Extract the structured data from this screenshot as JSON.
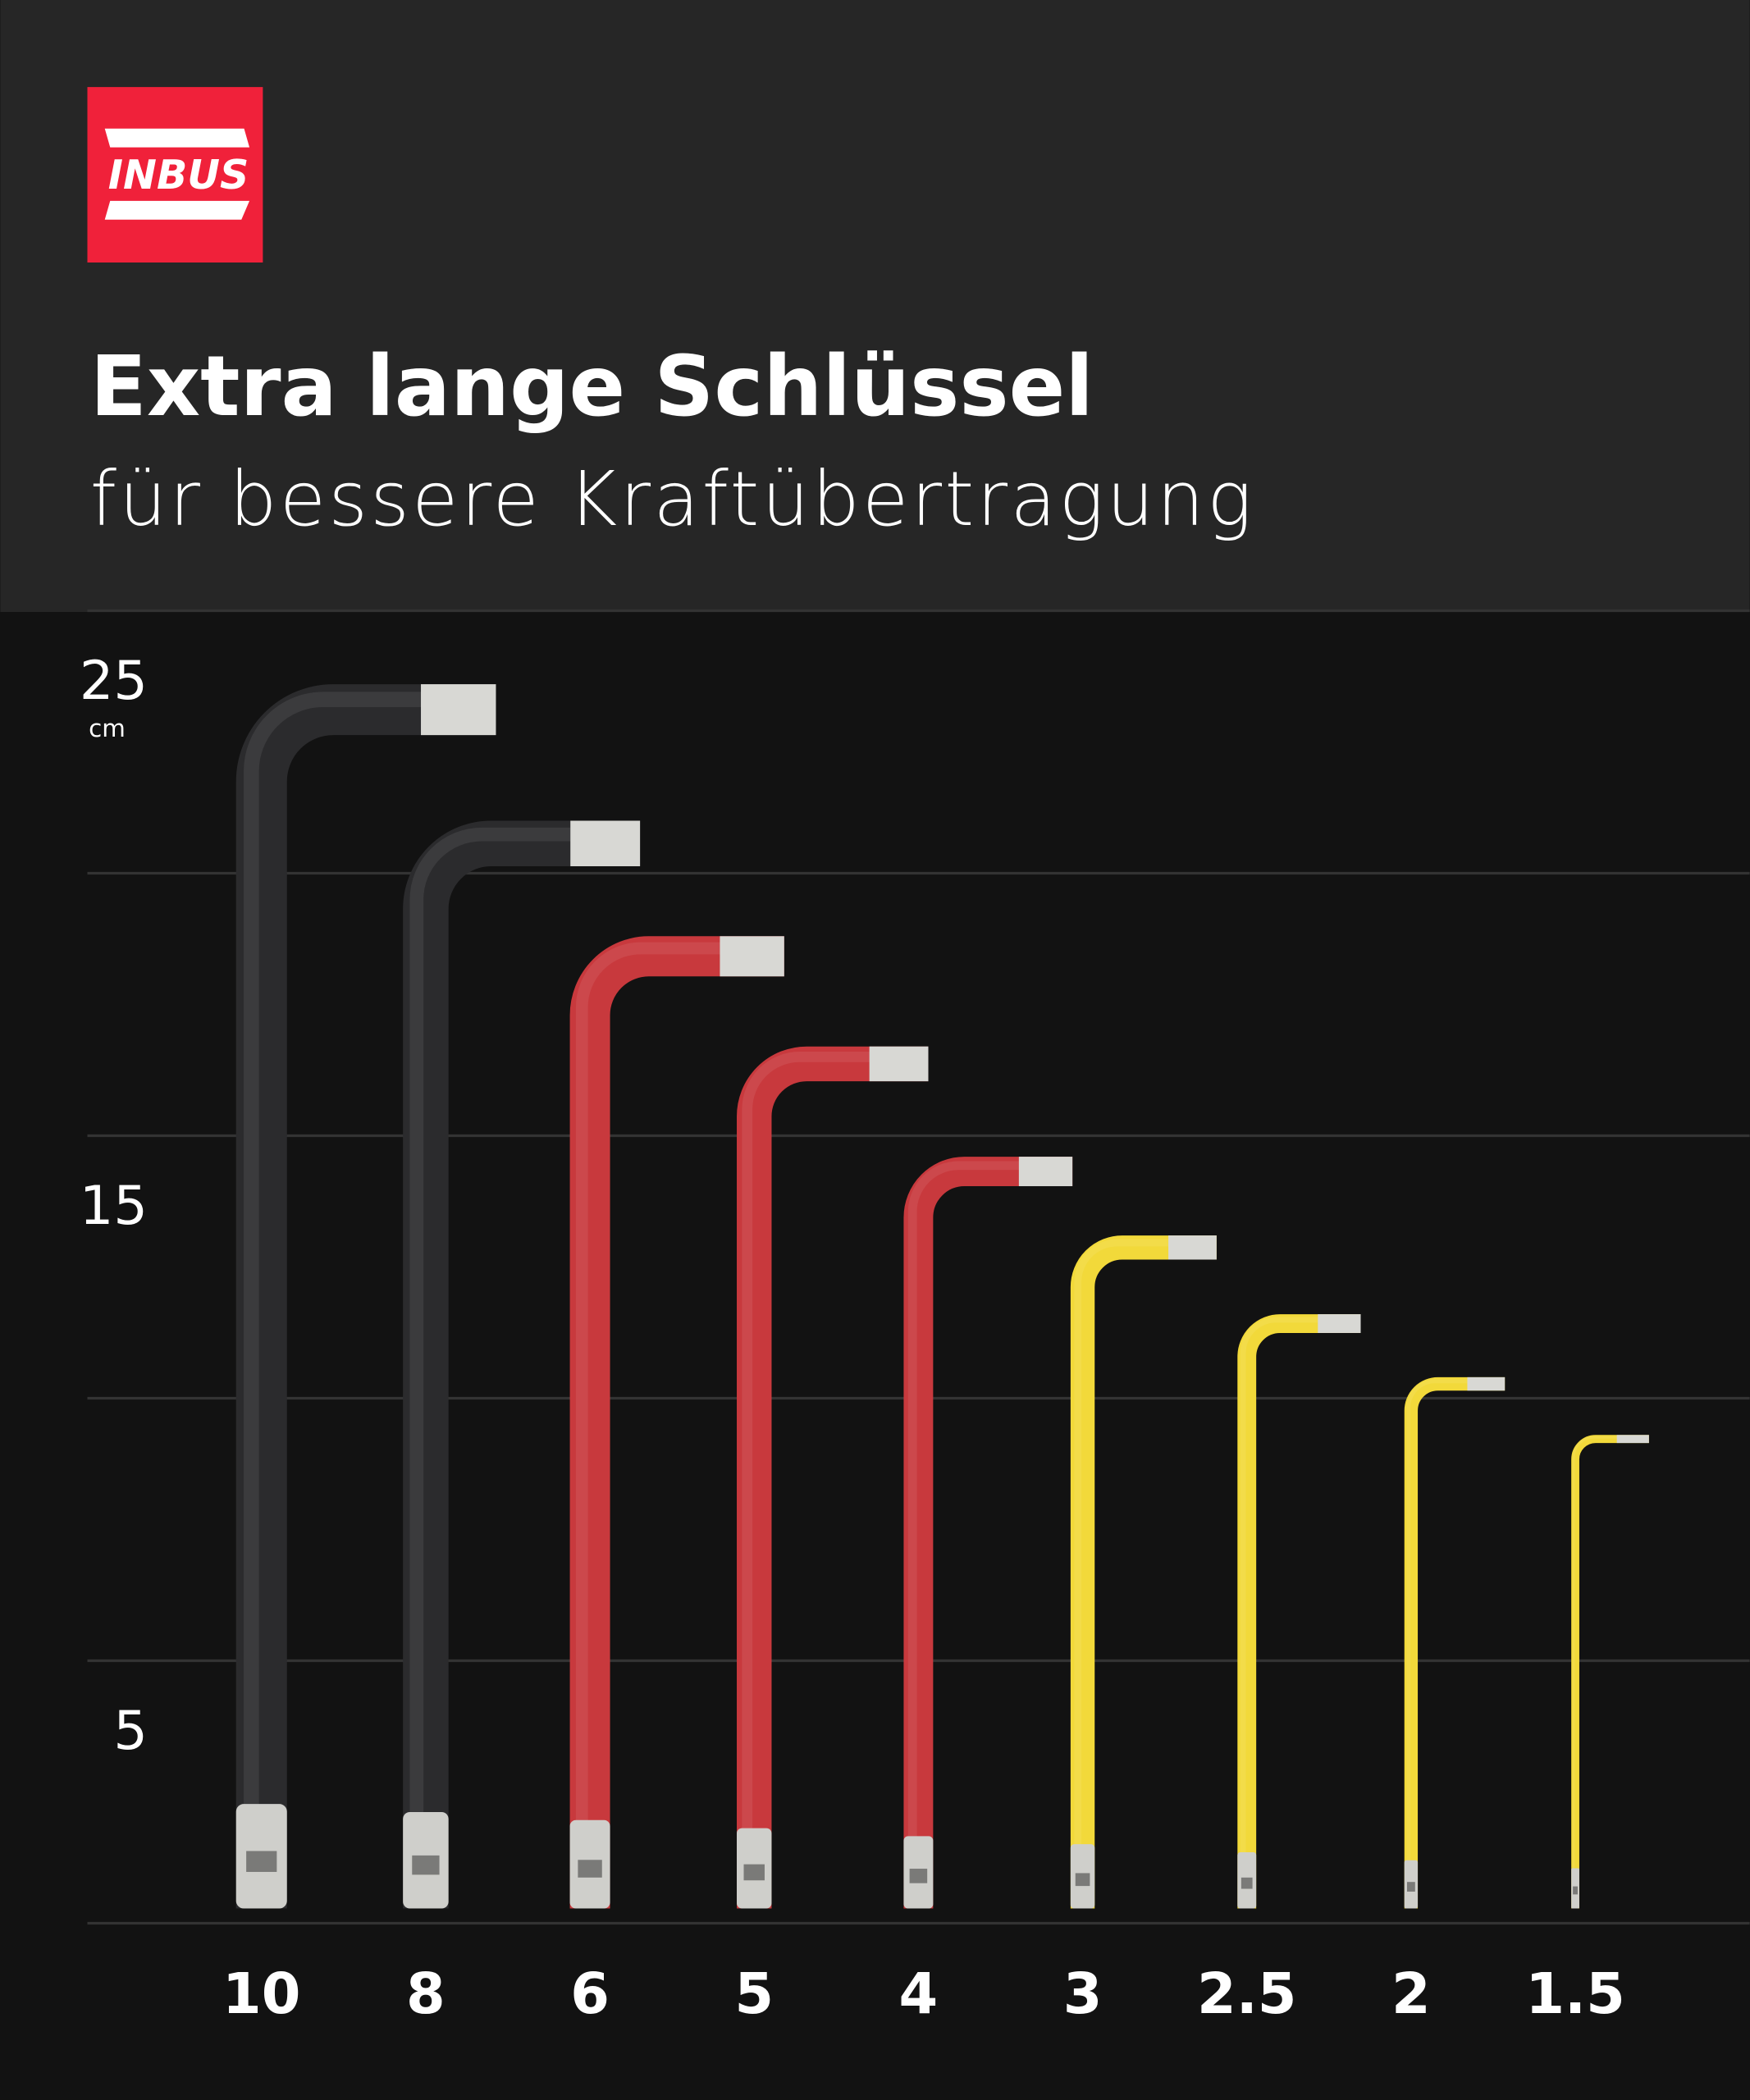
{
  "logo": "INBUS",
  "chart_data": {
    "type": "key",
    "title": "Extra lange Schlüssel",
    "subtitle": "für bessere Kraftübertragung",
    "ylabel": "cm",
    "categories": [
      "10",
      "8",
      "6",
      "5",
      "4",
      "3",
      "2.5",
      "2",
      "1.5"
    ],
    "values": [
      23.6,
      21.0,
      18.8,
      16.7,
      14.6,
      13.1,
      11.6,
      10.4,
      9.3
    ],
    "colors": [
      "#2b2b2d",
      "#2b2b2d",
      "#c8393d",
      "#c8393d",
      "#c8393d",
      "#f2d93a",
      "#f2d93a",
      "#f2d93a",
      "#f2d93a"
    ],
    "ylim": [
      0,
      25
    ],
    "yticks": [
      5,
      15,
      25
    ],
    "minor_yticks": [
      10,
      20
    ],
    "grid": true
  }
}
